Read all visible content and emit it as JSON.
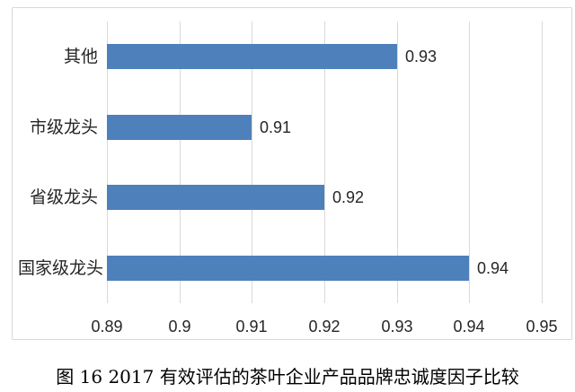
{
  "page": {
    "caption": "图 16  2017 有效评估的茶叶企业产品品牌忠诚度因子比较"
  },
  "chart_data": {
    "type": "bar",
    "orientation": "horizontal",
    "title": "",
    "categories": [
      "其他",
      "市级龙头",
      "省级龙头",
      "国家级龙头"
    ],
    "values": [
      0.93,
      0.91,
      0.92,
      0.94
    ],
    "data_labels": [
      "0.93",
      "0.91",
      "0.92",
      "0.94"
    ],
    "x_ticks": [
      "0.89",
      "0.9",
      "0.91",
      "0.92",
      "0.93",
      "0.94",
      "0.95"
    ],
    "xlim": [
      0.89,
      0.95
    ],
    "xlabel": "",
    "ylabel": "",
    "grid": "vertical gridlines on",
    "legend": "none",
    "colors": {
      "bar": "#4e80bc",
      "gridline": "#d9d9d9",
      "frame_border": "#d8d8d8",
      "tick_text": "#262626",
      "caption_text": "#000000",
      "background": "#ffffff"
    }
  }
}
